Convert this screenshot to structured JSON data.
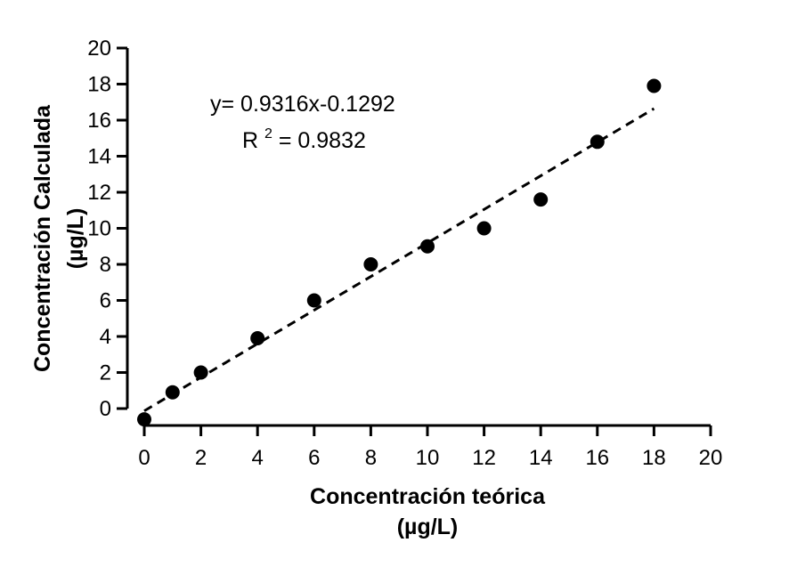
{
  "chart_data": {
    "type": "scatter",
    "title": "",
    "xlabel": [
      "Concentración teórica",
      "(µg/L)"
    ],
    "ylabel": [
      "Concentración Calculada",
      "(µg/L)"
    ],
    "xlim": [
      0,
      20
    ],
    "ylim": [
      0,
      20
    ],
    "xticks": [
      "0",
      "2",
      "4",
      "6",
      "8",
      "10",
      "12",
      "14",
      "16",
      "18",
      "20"
    ],
    "yticks": [
      "0",
      "2",
      "4",
      "6",
      "8",
      "10",
      "12",
      "14",
      "16",
      "18",
      "20"
    ],
    "grid": false,
    "series": [
      {
        "type": "scatter",
        "color": "#000000",
        "points": [
          {
            "x": 0,
            "y": -0.6
          },
          {
            "x": 1,
            "y": 0.9
          },
          {
            "x": 2,
            "y": 2.0
          },
          {
            "x": 4,
            "y": 3.9
          },
          {
            "x": 6,
            "y": 6.0
          },
          {
            "x": 8,
            "y": 8.0
          },
          {
            "x": 10,
            "y": 9.0
          },
          {
            "x": 12,
            "y": 10.0
          },
          {
            "x": 14,
            "y": 11.6
          },
          {
            "x": 16,
            "y": 14.8
          },
          {
            "x": 18,
            "y": 17.9
          }
        ]
      },
      {
        "type": "line",
        "style": "dashed",
        "color": "#000000",
        "slope": 0.9316,
        "intercept": -0.1292,
        "x_range": [
          0,
          18
        ]
      }
    ],
    "annotations": {
      "equation": "y= 0.9316x-0.1292",
      "r2_prefix": "R",
      "r2_superscript": "2",
      "r2_value": " = 0.9832"
    }
  }
}
